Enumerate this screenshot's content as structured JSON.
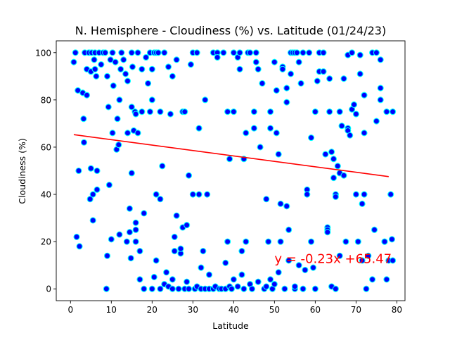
{
  "chart_data": {
    "type": "scatter",
    "title": "N. Hemisphere - Cloudiness (%) vs. Latitude (01/24/23)",
    "xlabel": "Latitude",
    "ylabel": "Cloudiness (%)",
    "xlim": [
      -3.5,
      82
    ],
    "ylim": [
      -5,
      105
    ],
    "xticks": [
      0,
      10,
      20,
      30,
      40,
      50,
      60,
      70,
      80
    ],
    "yticks": [
      0,
      20,
      40,
      60,
      80,
      100
    ],
    "grid": false,
    "marker_face_color": "#0000ff",
    "marker_edge_color": "#00ffff",
    "regression": {
      "slope": -0.23,
      "intercept": 65.47,
      "x_range": [
        0.8,
        78
      ],
      "color": "#ff0000",
      "equation": "y = -0.23x +65.47",
      "equation_at": [
        50,
        11
      ]
    },
    "points": [
      [
        0.8,
        96
      ],
      [
        1.2,
        100
      ],
      [
        1.5,
        22
      ],
      [
        1.8,
        84
      ],
      [
        2,
        50
      ],
      [
        2.2,
        18
      ],
      [
        3,
        83
      ],
      [
        3.2,
        72
      ],
      [
        3.3,
        62
      ],
      [
        3.5,
        100
      ],
      [
        4,
        93
      ],
      [
        4,
        82
      ],
      [
        4.5,
        100
      ],
      [
        4.8,
        38
      ],
      [
        5,
        51
      ],
      [
        5,
        92
      ],
      [
        5.2,
        100
      ],
      [
        5.5,
        29
      ],
      [
        5.5,
        40
      ],
      [
        5.8,
        97
      ],
      [
        6,
        100
      ],
      [
        6,
        93
      ],
      [
        6.3,
        90
      ],
      [
        6.5,
        50
      ],
      [
        6.5,
        42
      ],
      [
        7,
        100
      ],
      [
        7.5,
        95
      ],
      [
        8,
        100
      ],
      [
        8.5,
        100
      ],
      [
        8.8,
        0
      ],
      [
        9,
        14
      ],
      [
        9,
        90
      ],
      [
        9.3,
        77
      ],
      [
        9.5,
        44
      ],
      [
        9.8,
        97
      ],
      [
        10,
        21
      ],
      [
        10.3,
        100
      ],
      [
        10.3,
        66
      ],
      [
        10.5,
        86
      ],
      [
        11,
        96
      ],
      [
        11.3,
        59
      ],
      [
        11.5,
        72
      ],
      [
        11.8,
        61
      ],
      [
        12,
        23
      ],
      [
        12,
        80
      ],
      [
        12.3,
        93
      ],
      [
        12.5,
        100
      ],
      [
        13,
        97
      ],
      [
        13.5,
        91
      ],
      [
        13.8,
        20
      ],
      [
        14,
        88
      ],
      [
        14,
        66
      ],
      [
        14.5,
        24
      ],
      [
        14.5,
        34
      ],
      [
        14.8,
        13
      ],
      [
        15,
        77
      ],
      [
        15,
        49
      ],
      [
        15,
        100
      ],
      [
        15.2,
        94
      ],
      [
        15.5,
        67
      ],
      [
        15.8,
        75
      ],
      [
        16,
        20
      ],
      [
        16,
        28
      ],
      [
        16,
        25
      ],
      [
        16,
        74
      ],
      [
        16.5,
        100
      ],
      [
        16.5,
        66
      ],
      [
        17,
        16
      ],
      [
        17,
        4
      ],
      [
        17.5,
        93
      ],
      [
        17.5,
        75
      ],
      [
        18,
        0
      ],
      [
        18,
        32
      ],
      [
        18.5,
        98
      ],
      [
        19,
        87
      ],
      [
        19.5,
        100
      ],
      [
        19.5,
        75
      ],
      [
        20,
        0
      ],
      [
        20,
        80
      ],
      [
        20,
        93
      ],
      [
        20.5,
        100
      ],
      [
        20.5,
        5
      ],
      [
        21,
        40
      ],
      [
        21,
        12
      ],
      [
        21,
        100
      ],
      [
        21.5,
        100
      ],
      [
        22,
        0
      ],
      [
        22,
        38
      ],
      [
        22,
        75
      ],
      [
        22.5,
        52
      ],
      [
        23,
        100
      ],
      [
        23,
        2
      ],
      [
        23.5,
        7
      ],
      [
        24,
        1
      ],
      [
        24,
        94
      ],
      [
        24.5,
        74
      ],
      [
        25,
        0
      ],
      [
        25,
        4
      ],
      [
        25,
        90
      ],
      [
        25.5,
        16
      ],
      [
        25.5,
        22
      ],
      [
        26,
        31
      ],
      [
        26,
        97
      ],
      [
        26.5,
        0
      ],
      [
        27,
        15
      ],
      [
        27,
        17
      ],
      [
        27.5,
        75
      ],
      [
        27.5,
        26
      ],
      [
        28,
        75
      ],
      [
        28,
        0
      ],
      [
        28.5,
        27
      ],
      [
        28.5,
        3
      ],
      [
        29,
        48
      ],
      [
        29,
        0
      ],
      [
        29.5,
        95
      ],
      [
        30,
        40
      ],
      [
        30,
        100
      ],
      [
        30.5,
        0
      ],
      [
        31,
        100
      ],
      [
        31,
        1
      ],
      [
        31.5,
        68
      ],
      [
        31.5,
        40
      ],
      [
        32,
        9
      ],
      [
        32,
        0
      ],
      [
        32.5,
        16
      ],
      [
        33,
        0
      ],
      [
        33,
        80
      ],
      [
        33.5,
        40
      ],
      [
        34,
        6
      ],
      [
        34,
        0
      ],
      [
        35,
        100
      ],
      [
        35,
        0
      ],
      [
        35.5,
        1
      ],
      [
        36,
        100
      ],
      [
        36,
        98
      ],
      [
        36.5,
        0
      ],
      [
        37,
        0
      ],
      [
        37.5,
        100
      ],
      [
        38,
        0
      ],
      [
        38,
        11
      ],
      [
        38.5,
        75
      ],
      [
        38.5,
        20
      ],
      [
        39,
        55
      ],
      [
        39,
        1
      ],
      [
        39.5,
        0
      ],
      [
        40,
        100
      ],
      [
        40,
        75
      ],
      [
        40,
        4
      ],
      [
        41,
        1
      ],
      [
        41,
        98
      ],
      [
        41.5,
        100
      ],
      [
        41.5,
        93
      ],
      [
        42,
        6
      ],
      [
        42,
        16
      ],
      [
        42.5,
        55
      ],
      [
        42.5,
        0
      ],
      [
        43,
        20
      ],
      [
        43,
        66
      ],
      [
        43.5,
        100
      ],
      [
        44,
        100
      ],
      [
        44,
        2
      ],
      [
        44.5,
        0
      ],
      [
        45,
        75
      ],
      [
        45,
        68
      ],
      [
        45.5,
        100
      ],
      [
        45.5,
        96
      ],
      [
        46,
        93
      ],
      [
        46,
        3
      ],
      [
        46.5,
        60
      ],
      [
        47,
        87
      ],
      [
        47.5,
        0
      ],
      [
        48,
        38
      ],
      [
        48,
        1
      ],
      [
        48.5,
        20
      ],
      [
        49,
        68
      ],
      [
        49,
        75
      ],
      [
        49,
        4
      ],
      [
        49.5,
        0
      ],
      [
        50,
        96
      ],
      [
        50,
        2
      ],
      [
        50.5,
        84
      ],
      [
        50.5,
        66
      ],
      [
        51,
        7
      ],
      [
        51,
        57
      ],
      [
        51.5,
        36
      ],
      [
        51.5,
        20
      ],
      [
        52,
        94
      ],
      [
        52,
        93
      ],
      [
        52.5,
        0
      ],
      [
        53,
        35
      ],
      [
        53,
        85
      ],
      [
        53,
        79
      ],
      [
        53.5,
        25
      ],
      [
        53.5,
        12
      ],
      [
        54,
        100
      ],
      [
        54,
        91
      ],
      [
        54.5,
        100
      ],
      [
        55,
        0
      ],
      [
        55,
        100
      ],
      [
        55,
        1
      ],
      [
        55.5,
        100
      ],
      [
        56,
        96
      ],
      [
        56,
        10
      ],
      [
        56.5,
        87
      ],
      [
        57,
        100
      ],
      [
        57,
        0
      ],
      [
        57.5,
        8
      ],
      [
        58,
        42
      ],
      [
        58,
        40
      ],
      [
        58.5,
        100
      ],
      [
        59,
        64
      ],
      [
        59,
        20
      ],
      [
        59.5,
        9
      ],
      [
        60,
        75
      ],
      [
        60,
        0
      ],
      [
        60.5,
        88
      ],
      [
        61,
        100
      ],
      [
        61,
        92
      ],
      [
        62,
        100
      ],
      [
        62,
        92
      ],
      [
        62.5,
        57
      ],
      [
        63,
        26
      ],
      [
        63,
        25
      ],
      [
        63,
        24
      ],
      [
        63.5,
        89
      ],
      [
        63.5,
        75
      ],
      [
        64,
        58
      ],
      [
        64,
        1
      ],
      [
        64.5,
        47
      ],
      [
        64.5,
        55
      ],
      [
        65,
        0
      ],
      [
        65,
        40
      ],
      [
        65,
        39
      ],
      [
        65.5,
        52
      ],
      [
        66,
        75
      ],
      [
        66,
        49
      ],
      [
        66,
        14
      ],
      [
        66.5,
        69
      ],
      [
        67,
        89
      ],
      [
        67,
        48
      ],
      [
        67.5,
        20
      ],
      [
        68,
        99
      ],
      [
        68,
        68
      ],
      [
        68,
        67
      ],
      [
        68.5,
        65
      ],
      [
        69,
        100
      ],
      [
        69,
        76
      ],
      [
        69.5,
        78
      ],
      [
        70,
        74
      ],
      [
        70,
        40
      ],
      [
        70.5,
        20
      ],
      [
        71,
        91
      ],
      [
        71,
        99
      ],
      [
        71.5,
        36
      ],
      [
        71.5,
        12
      ],
      [
        72,
        82
      ],
      [
        72,
        66
      ],
      [
        72,
        40
      ],
      [
        72.5,
        0
      ],
      [
        73,
        14
      ],
      [
        74,
        4
      ],
      [
        74,
        100
      ],
      [
        74.5,
        25
      ],
      [
        75,
        100
      ],
      [
        75,
        71
      ],
      [
        76,
        85
      ],
      [
        76,
        97
      ],
      [
        76,
        80
      ],
      [
        77,
        20
      ],
      [
        77,
        20
      ],
      [
        77.5,
        75
      ],
      [
        77.5,
        4
      ],
      [
        78,
        12
      ],
      [
        78.5,
        40
      ],
      [
        78.8,
        21
      ],
      [
        79,
        75
      ],
      [
        79,
        12
      ]
    ]
  }
}
